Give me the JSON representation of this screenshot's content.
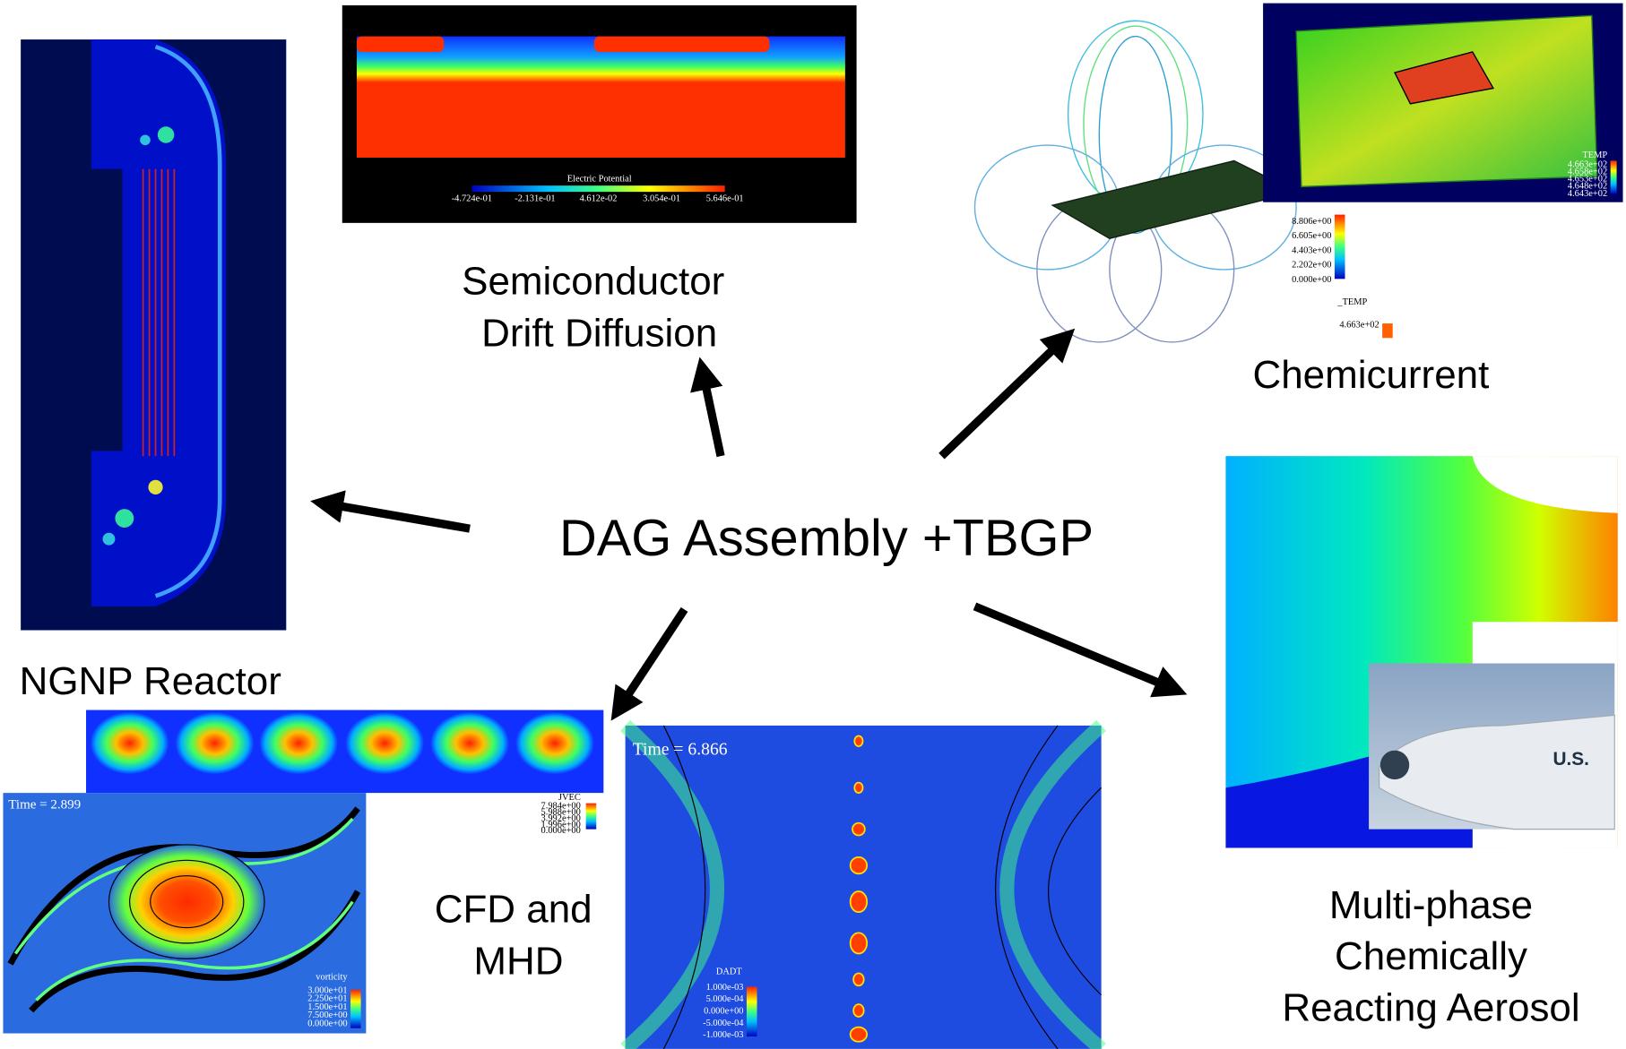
{
  "center": {
    "label": "DAG Assembly +TBGP"
  },
  "semiconductor": {
    "label": [
      "Semiconductor",
      "Drift Diffusion"
    ],
    "colorbar_title": "Electric Potential",
    "colorbar_labels": [
      "-4.724e-01",
      "-2.131e-01",
      "4.612e-02",
      "3.054e-01",
      "5.646e-01"
    ]
  },
  "chemicurrent": {
    "label": "Chemicurrent",
    "legend_labels": [
      "8.806e+00",
      "6.605e+00",
      "4.403e+00",
      "2.202e+00",
      "0.000e+00"
    ],
    "legend2_title": "_TEMP",
    "legend2_labels": [
      "4.663e+02"
    ],
    "inset_title": "TEMP",
    "inset_labels": [
      "4.663e+02",
      "4.658e+02",
      "4.653e+02",
      "4.648e+02",
      "4.643e+02"
    ]
  },
  "ngnp": {
    "label": "NGNP Reactor"
  },
  "cfd": {
    "label": [
      "CFD and",
      "MHD"
    ],
    "strip_title": "JVEC",
    "strip_labels": [
      "7.984e+00",
      "5.988e+00",
      "3.992e+00",
      "1.996e+00",
      "0.000e+00"
    ],
    "vortex_time": "Time = 2.899",
    "vortex_title": "vorticity",
    "vortex_labels": [
      "3.000e+01",
      "2.250e+01",
      "1.500e+01",
      "7.500e+00",
      "0.000e+00"
    ],
    "dadt_time": "Time = 6.866",
    "dadt_title": "DADT",
    "dadt_labels": [
      "1.000e-03",
      "5.000e-04",
      "0.000e+00",
      "-5.000e-04",
      "-1.000e-03"
    ]
  },
  "aerosol": {
    "label": [
      "Multi-phase",
      "Chemically",
      "Reacting Aerosol"
    ],
    "photo_text": "U.S."
  }
}
